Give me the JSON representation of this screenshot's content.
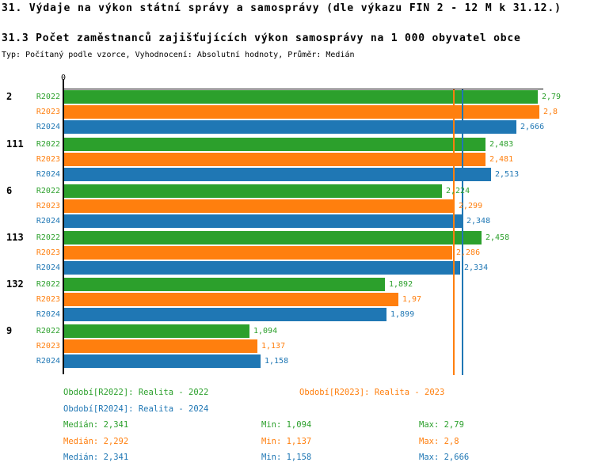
{
  "page": {
    "title1": "31. Výdaje na výkon státní správy a samosprávy (dle výkazu FIN 2 - 12 M k 31.12.)",
    "title2": "31.3 Počet zaměstnanců zajišťujících výkon samosprávy na 1 000 obyvatel obce",
    "subtitle": "Typ: Počítaný podle vzorce, Vyhodnocení: Absolutní hodnoty, Průměr: Medián"
  },
  "colors": {
    "r2022": "#2ca02c",
    "r2023": "#ff7f0e",
    "r2024": "#1f77b4",
    "axis": "#000000",
    "background": "#ffffff"
  },
  "chart_data": {
    "type": "bar",
    "orientation": "horizontal",
    "axis_origin_label": "0",
    "xlim": [
      0,
      2.82
    ],
    "grid": false,
    "categories": [
      "2",
      "111",
      "6",
      "113",
      "132",
      "9"
    ],
    "series": [
      {
        "name": "R2022",
        "color": "#2ca02c",
        "values": [
          2.79,
          2.483,
          2.224,
          2.458,
          1.892,
          1.094
        ],
        "value_labels": [
          "2,79",
          "2,483",
          "2,224",
          "2,458",
          "1,892",
          "1,094"
        ]
      },
      {
        "name": "R2023",
        "color": "#ff7f0e",
        "values": [
          2.8,
          2.481,
          2.299,
          2.286,
          1.97,
          1.137
        ],
        "value_labels": [
          "2,8",
          "2,481",
          "2,299",
          "2,286",
          "1,97",
          "1,137"
        ]
      },
      {
        "name": "R2024",
        "color": "#1f77b4",
        "values": [
          2.666,
          2.513,
          2.348,
          2.334,
          1.899,
          1.158
        ],
        "value_labels": [
          "2,666",
          "2,513",
          "2,348",
          "2,334",
          "1,899",
          "1,158"
        ]
      }
    ],
    "median_lines": [
      {
        "name": "R2022",
        "value": 2.341,
        "color": "#2ca02c"
      },
      {
        "name": "R2023",
        "value": 2.292,
        "color": "#ff7f0e"
      },
      {
        "name": "R2024",
        "value": 2.341,
        "color": "#1f77b4"
      }
    ]
  },
  "legend": {
    "period_r2022": "Období[R2022]: Realita - 2022",
    "period_r2023": "Období[R2023]: Realita - 2023",
    "period_r2024": "Období[R2024]: Realita - 2024",
    "stats": [
      {
        "series": "R2022",
        "color": "#2ca02c",
        "median": "Medián: 2,341",
        "min": "Min: 1,094",
        "max": "Max: 2,79"
      },
      {
        "series": "R2023",
        "color": "#ff7f0e",
        "median": "Medián: 2,292",
        "min": "Min: 1,137",
        "max": "Max: 2,8"
      },
      {
        "series": "R2024",
        "color": "#1f77b4",
        "median": "Medián: 2,341",
        "min": "Min: 1,158",
        "max": "Max: 2,666"
      }
    ]
  }
}
